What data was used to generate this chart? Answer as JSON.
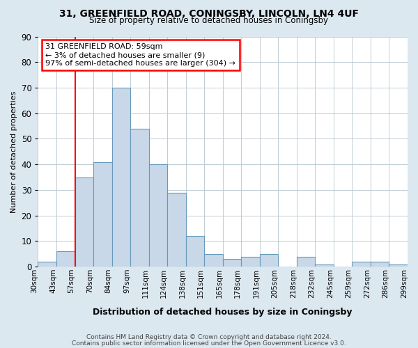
{
  "title1": "31, GREENFIELD ROAD, CONINGSBY, LINCOLN, LN4 4UF",
  "title2": "Size of property relative to detached houses in Coningsby",
  "xlabel": "Distribution of detached houses by size in Coningsby",
  "ylabel": "Number of detached properties",
  "footer1": "Contains HM Land Registry data © Crown copyright and database right 2024.",
  "footer2": "Contains public sector information licensed under the Open Government Licence v3.0.",
  "bins": [
    "30sqm",
    "43sqm",
    "57sqm",
    "70sqm",
    "84sqm",
    "97sqm",
    "111sqm",
    "124sqm",
    "138sqm",
    "151sqm",
    "165sqm",
    "178sqm",
    "191sqm",
    "205sqm",
    "218sqm",
    "232sqm",
    "245sqm",
    "259sqm",
    "272sqm",
    "286sqm",
    "299sqm"
  ],
  "values": [
    2,
    6,
    35,
    41,
    70,
    54,
    40,
    29,
    12,
    5,
    3,
    4,
    5,
    0,
    4,
    1,
    0,
    2,
    2,
    1
  ],
  "bar_color": "#c8d8e8",
  "bar_edge_color": "#6699bb",
  "vline_x": 2,
  "vline_color": "red",
  "annotation_line1": "31 GREENFIELD ROAD: 59sqm",
  "annotation_line2": "← 3% of detached houses are smaller (9)",
  "annotation_line3": "97% of semi-detached houses are larger (304) →",
  "annotation_box_color": "white",
  "annotation_box_edge_color": "red",
  "ylim": [
    0,
    90
  ],
  "yticks": [
    0,
    10,
    20,
    30,
    40,
    50,
    60,
    70,
    80,
    90
  ],
  "background_color": "#dce8f0",
  "plot_bg_color": "white",
  "grid_color": "#c0ccd4"
}
